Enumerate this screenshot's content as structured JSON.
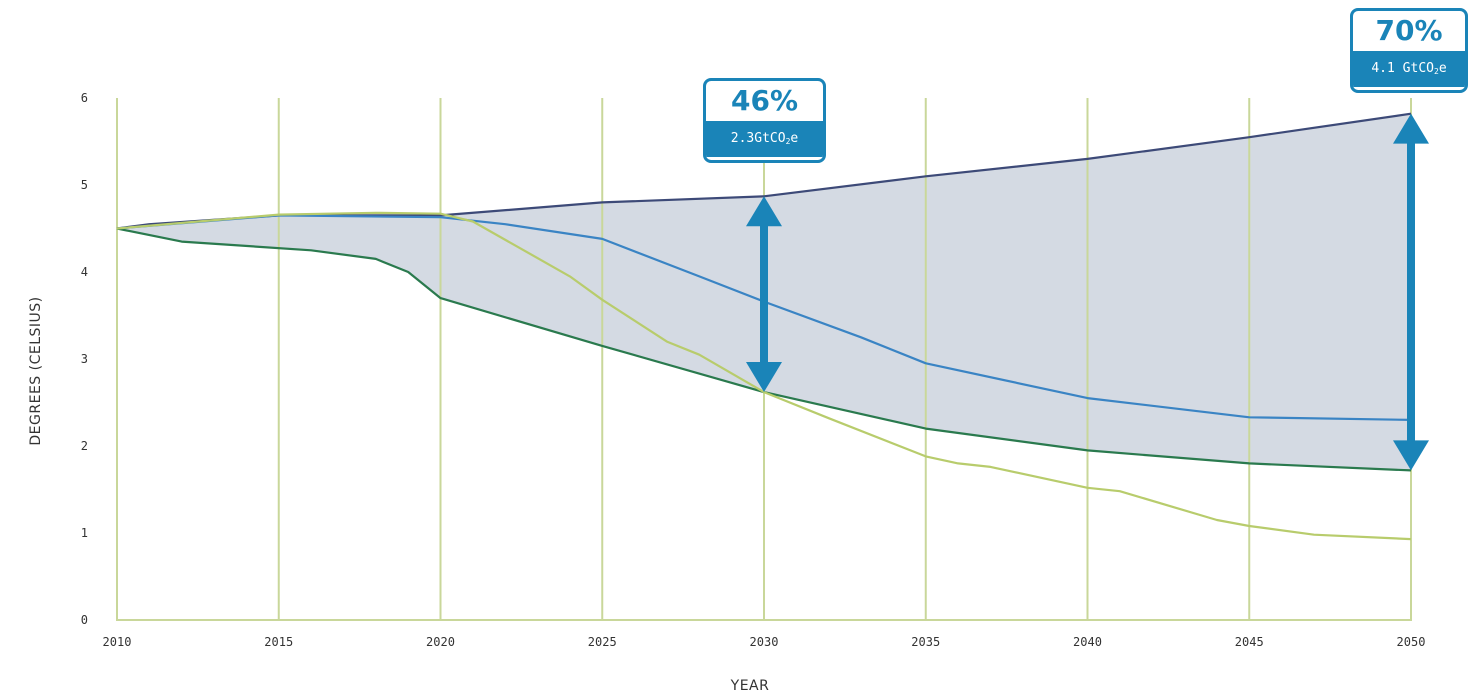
{
  "chart_data": {
    "type": "area",
    "xlabel": "YEAR",
    "ylabel": "DEGREES (CELSIUS)",
    "xlim": [
      2010,
      2050
    ],
    "ylim": [
      0,
      6
    ],
    "x_ticks": [
      "2010",
      "2015",
      "2020",
      "2025",
      "2030",
      "2035",
      "2040",
      "2045",
      "2050"
    ],
    "y_ticks": [
      "0",
      "1",
      "2",
      "3",
      "4",
      "5",
      "6"
    ],
    "grid": "vertical",
    "series": [
      {
        "color": "#3d4a78",
        "x": [
          2010,
          2011,
          2015,
          2020,
          2025,
          2030,
          2035,
          2040,
          2045,
          2050
        ],
        "y": [
          4.5,
          4.55,
          4.65,
          4.65,
          4.8,
          4.87,
          5.1,
          5.3,
          5.55,
          5.82
        ]
      },
      {
        "color": "#3a84c4",
        "x": [
          2010,
          2015,
          2020,
          2022,
          2025,
          2028,
          2030,
          2033,
          2035,
          2040,
          2045,
          2050
        ],
        "y": [
          4.5,
          4.65,
          4.63,
          4.55,
          4.38,
          3.95,
          3.66,
          3.25,
          2.95,
          2.55,
          2.33,
          2.3
        ]
      },
      {
        "color": "#2a7a4e",
        "x": [
          2010,
          2012,
          2016,
          2018,
          2019,
          2020,
          2025,
          2030,
          2035,
          2040,
          2045,
          2050
        ],
        "y": [
          4.5,
          4.35,
          4.25,
          4.15,
          4.0,
          3.7,
          3.15,
          2.62,
          2.2,
          1.95,
          1.8,
          1.72
        ]
      },
      {
        "color": "#b8cc6c",
        "x": [
          2010,
          2015,
          2018,
          2020,
          2021,
          2024,
          2025,
          2027,
          2028,
          2030,
          2032,
          2035,
          2036,
          2037,
          2040,
          2041,
          2044,
          2045,
          2047,
          2050
        ],
        "y": [
          4.5,
          4.66,
          4.68,
          4.67,
          4.58,
          3.95,
          3.68,
          3.2,
          3.05,
          2.62,
          2.32,
          1.88,
          1.8,
          1.76,
          1.52,
          1.48,
          1.15,
          1.08,
          0.98,
          0.93
        ]
      }
    ],
    "shaded_region": {
      "color": "#d4dae3",
      "upper_series": 0,
      "lower_series": 2
    },
    "annotations": [
      {
        "x": 2030,
        "y_range": [
          2.62,
          4.87
        ],
        "color": "#1a84b8",
        "percent": "46%",
        "detail_main": "2.3GtCO",
        "detail_sub": "2",
        "detail_end": "e"
      },
      {
        "x": 2050,
        "y_range": [
          1.72,
          5.82
        ],
        "color": "#1a84b8",
        "percent": "70%",
        "detail_main": "4.1 GtCO",
        "detail_sub": "2",
        "detail_end": "e"
      }
    ]
  }
}
